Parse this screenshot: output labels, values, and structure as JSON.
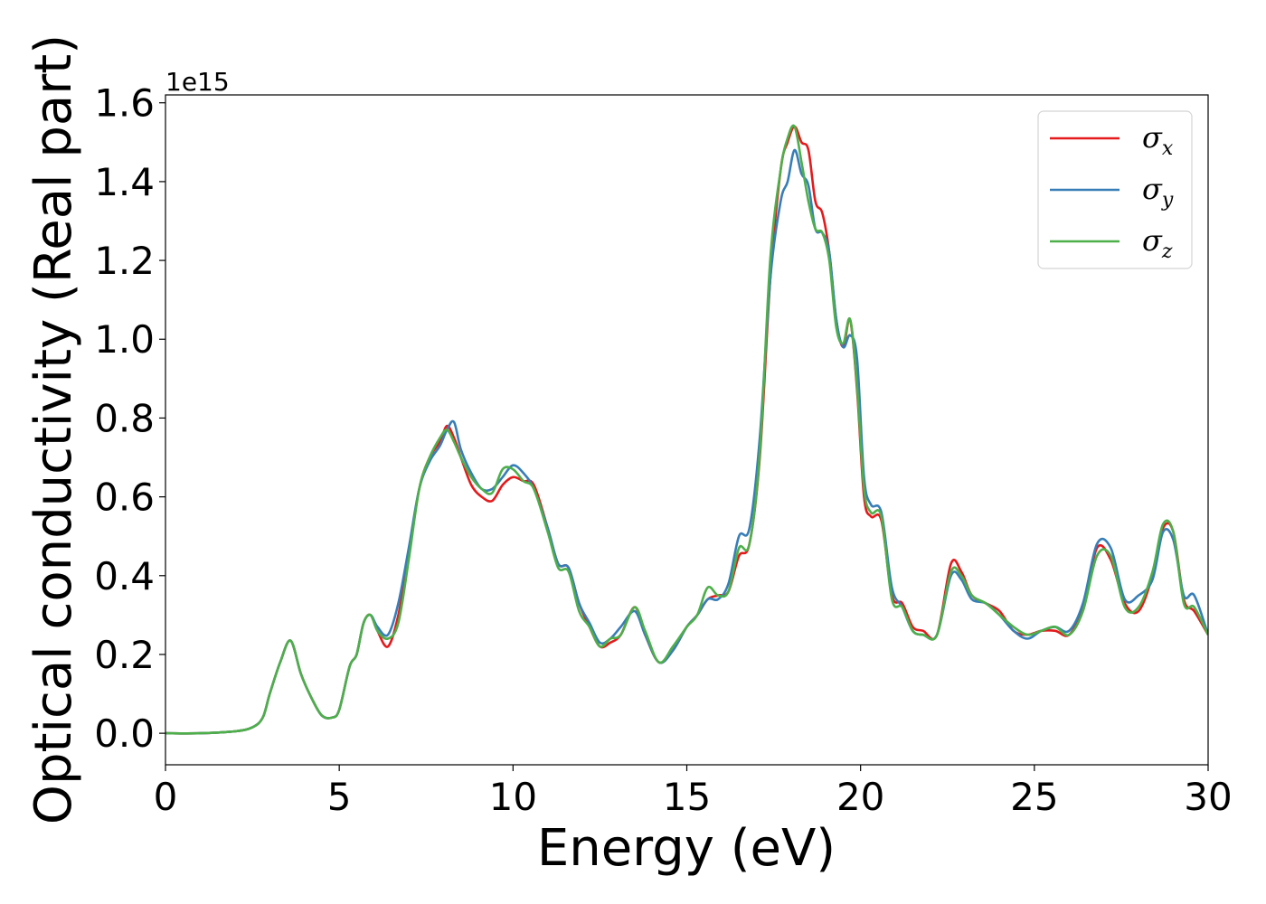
{
  "chart_data": {
    "type": "line",
    "title": "",
    "xlabel": "Energy (eV)",
    "ylabel": "Optical conductivity (Real part)",
    "y_offset_label": "1e15",
    "y_scale": 1000000000000000.0,
    "xlim": [
      0,
      30
    ],
    "ylim": [
      -0.08,
      1.62
    ],
    "grid": false,
    "legend_position": "top-right",
    "x_ticks": [
      0,
      5,
      10,
      15,
      20,
      25,
      30
    ],
    "x_tick_labels": [
      "0",
      "5",
      "10",
      "15",
      "20",
      "25",
      "30"
    ],
    "y_ticks": [
      0.0,
      0.2,
      0.4,
      0.6,
      0.8,
      1.0,
      1.2,
      1.4,
      1.6
    ],
    "y_tick_labels": [
      "0.0",
      "0.2",
      "0.4",
      "0.6",
      "0.8",
      "1.0",
      "1.2",
      "1.4",
      "1.6"
    ],
    "series": [
      {
        "name": "σx",
        "legend_symbol": "σ",
        "legend_subscript": "x",
        "color": "#e41a1c",
        "x": [
          0,
          1,
          2,
          2.5,
          2.8,
          3.0,
          3.3,
          3.6,
          3.9,
          4.2,
          4.5,
          4.8,
          5.0,
          5.3,
          5.5,
          5.7,
          5.9,
          6.1,
          6.4,
          6.7,
          7.0,
          7.3,
          7.6,
          7.9,
          8.1,
          8.3,
          8.5,
          8.8,
          9.1,
          9.4,
          9.7,
          10.0,
          10.3,
          10.6,
          11.0,
          11.3,
          11.6,
          11.9,
          12.2,
          12.5,
          12.8,
          13.1,
          13.5,
          13.8,
          14.2,
          14.6,
          15.0,
          15.3,
          15.6,
          15.9,
          16.2,
          16.5,
          16.8,
          17.1,
          17.4,
          17.7,
          17.9,
          18.1,
          18.3,
          18.5,
          18.7,
          18.9,
          19.1,
          19.3,
          19.5,
          19.7,
          19.9,
          20.1,
          20.3,
          20.6,
          20.9,
          21.2,
          21.5,
          21.8,
          22.2,
          22.6,
          22.9,
          23.2,
          23.6,
          24.0,
          24.4,
          24.8,
          25.2,
          25.6,
          26.0,
          26.4,
          26.8,
          27.2,
          27.6,
          28.0,
          28.4,
          28.7,
          29.0,
          29.3,
          29.6,
          30.0
        ],
        "y": [
          0.0,
          0.0,
          0.005,
          0.015,
          0.04,
          0.1,
          0.18,
          0.235,
          0.15,
          0.09,
          0.045,
          0.04,
          0.06,
          0.17,
          0.2,
          0.28,
          0.3,
          0.26,
          0.22,
          0.3,
          0.45,
          0.62,
          0.7,
          0.74,
          0.78,
          0.75,
          0.7,
          0.63,
          0.6,
          0.59,
          0.63,
          0.65,
          0.64,
          0.63,
          0.52,
          0.43,
          0.42,
          0.33,
          0.27,
          0.22,
          0.23,
          0.25,
          0.32,
          0.25,
          0.18,
          0.21,
          0.27,
          0.3,
          0.34,
          0.35,
          0.36,
          0.45,
          0.48,
          0.7,
          1.15,
          1.43,
          1.5,
          1.54,
          1.5,
          1.48,
          1.35,
          1.32,
          1.22,
          1.05,
          0.98,
          1.05,
          0.87,
          0.6,
          0.55,
          0.54,
          0.35,
          0.33,
          0.27,
          0.26,
          0.25,
          0.43,
          0.41,
          0.35,
          0.33,
          0.31,
          0.26,
          0.25,
          0.26,
          0.26,
          0.25,
          0.32,
          0.47,
          0.44,
          0.33,
          0.31,
          0.4,
          0.52,
          0.51,
          0.34,
          0.31,
          0.25
        ]
      },
      {
        "name": "σy",
        "legend_symbol": "σ",
        "legend_subscript": "y",
        "color": "#377eb8",
        "x": [
          0,
          1,
          2,
          2.5,
          2.8,
          3.0,
          3.3,
          3.6,
          3.9,
          4.2,
          4.5,
          4.8,
          5.0,
          5.3,
          5.5,
          5.7,
          5.9,
          6.1,
          6.4,
          6.7,
          7.0,
          7.3,
          7.6,
          7.9,
          8.1,
          8.3,
          8.5,
          8.8,
          9.1,
          9.4,
          9.7,
          10.0,
          10.3,
          10.6,
          11.0,
          11.3,
          11.6,
          11.9,
          12.2,
          12.5,
          12.8,
          13.1,
          13.5,
          13.8,
          14.2,
          14.6,
          15.0,
          15.3,
          15.6,
          15.9,
          16.2,
          16.5,
          16.8,
          17.1,
          17.4,
          17.7,
          17.9,
          18.1,
          18.3,
          18.5,
          18.7,
          18.9,
          19.1,
          19.3,
          19.5,
          19.7,
          19.9,
          20.1,
          20.3,
          20.6,
          20.9,
          21.2,
          21.5,
          21.8,
          22.2,
          22.6,
          22.9,
          23.2,
          23.6,
          24.0,
          24.4,
          24.8,
          25.2,
          25.6,
          26.0,
          26.4,
          26.8,
          27.2,
          27.6,
          28.0,
          28.4,
          28.7,
          29.0,
          29.3,
          29.6,
          30.0
        ],
        "y": [
          0.0,
          0.0,
          0.005,
          0.015,
          0.04,
          0.1,
          0.18,
          0.235,
          0.15,
          0.09,
          0.045,
          0.04,
          0.06,
          0.17,
          0.2,
          0.28,
          0.3,
          0.27,
          0.25,
          0.33,
          0.47,
          0.62,
          0.69,
          0.73,
          0.77,
          0.79,
          0.72,
          0.66,
          0.62,
          0.62,
          0.65,
          0.68,
          0.66,
          0.62,
          0.52,
          0.43,
          0.42,
          0.33,
          0.28,
          0.23,
          0.24,
          0.27,
          0.31,
          0.25,
          0.18,
          0.21,
          0.27,
          0.3,
          0.34,
          0.34,
          0.38,
          0.5,
          0.52,
          0.75,
          1.15,
          1.35,
          1.4,
          1.48,
          1.42,
          1.39,
          1.28,
          1.27,
          1.22,
          1.05,
          0.98,
          1.01,
          0.95,
          0.65,
          0.58,
          0.56,
          0.37,
          0.32,
          0.26,
          0.25,
          0.25,
          0.4,
          0.39,
          0.34,
          0.33,
          0.3,
          0.26,
          0.24,
          0.26,
          0.27,
          0.26,
          0.33,
          0.48,
          0.47,
          0.34,
          0.35,
          0.39,
          0.51,
          0.49,
          0.35,
          0.35,
          0.25
        ]
      },
      {
        "name": "σz",
        "legend_symbol": "σ",
        "legend_subscript": "z",
        "color": "#4daf4a",
        "x": [
          0,
          1,
          2,
          2.5,
          2.8,
          3.0,
          3.3,
          3.6,
          3.9,
          4.2,
          4.5,
          4.8,
          5.0,
          5.3,
          5.5,
          5.7,
          5.9,
          6.1,
          6.4,
          6.7,
          7.0,
          7.3,
          7.6,
          7.9,
          8.1,
          8.3,
          8.5,
          8.8,
          9.1,
          9.4,
          9.7,
          10.0,
          10.3,
          10.6,
          11.0,
          11.3,
          11.6,
          11.9,
          12.2,
          12.5,
          12.8,
          13.1,
          13.5,
          13.8,
          14.2,
          14.6,
          15.0,
          15.3,
          15.6,
          15.9,
          16.2,
          16.5,
          16.8,
          17.1,
          17.4,
          17.7,
          17.9,
          18.1,
          18.3,
          18.5,
          18.7,
          18.9,
          19.1,
          19.3,
          19.5,
          19.7,
          19.9,
          20.1,
          20.3,
          20.6,
          20.9,
          21.2,
          21.5,
          21.8,
          22.2,
          22.6,
          22.9,
          23.2,
          23.6,
          24.0,
          24.4,
          24.8,
          25.2,
          25.6,
          26.0,
          26.4,
          26.8,
          27.2,
          27.6,
          28.0,
          28.4,
          28.7,
          29.0,
          29.3,
          29.6,
          30.0
        ],
        "y": [
          0.0,
          0.0,
          0.005,
          0.015,
          0.04,
          0.1,
          0.18,
          0.235,
          0.15,
          0.09,
          0.045,
          0.04,
          0.06,
          0.17,
          0.2,
          0.28,
          0.3,
          0.26,
          0.24,
          0.28,
          0.44,
          0.62,
          0.7,
          0.75,
          0.77,
          0.74,
          0.7,
          0.65,
          0.62,
          0.61,
          0.67,
          0.67,
          0.64,
          0.62,
          0.51,
          0.42,
          0.41,
          0.31,
          0.27,
          0.22,
          0.24,
          0.25,
          0.32,
          0.26,
          0.18,
          0.22,
          0.27,
          0.3,
          0.37,
          0.35,
          0.36,
          0.47,
          0.48,
          0.71,
          1.2,
          1.43,
          1.51,
          1.54,
          1.45,
          1.35,
          1.28,
          1.27,
          1.2,
          1.03,
          0.99,
          1.05,
          0.88,
          0.62,
          0.56,
          0.55,
          0.34,
          0.32,
          0.26,
          0.25,
          0.25,
          0.41,
          0.4,
          0.35,
          0.33,
          0.3,
          0.27,
          0.25,
          0.26,
          0.27,
          0.25,
          0.31,
          0.45,
          0.45,
          0.32,
          0.32,
          0.41,
          0.53,
          0.51,
          0.33,
          0.32,
          0.25
        ]
      }
    ]
  }
}
